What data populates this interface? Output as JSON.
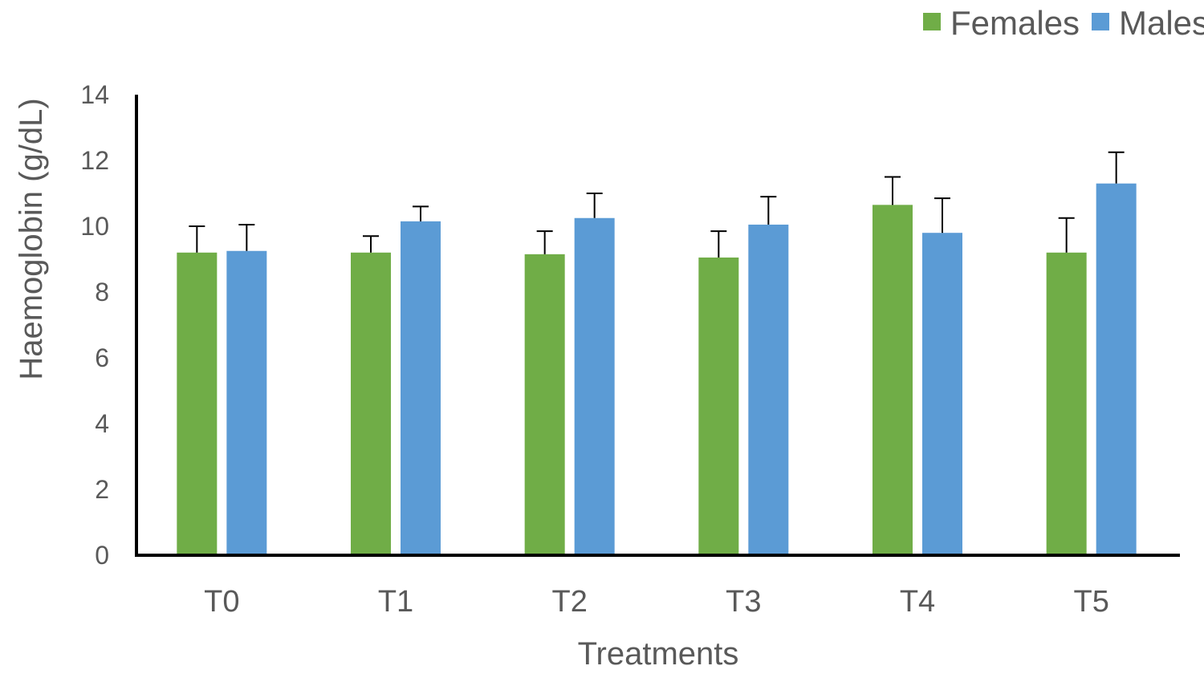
{
  "chart_data": {
    "type": "bar",
    "title": "",
    "xlabel": "Treatments",
    "ylabel": "Haemoglobin  (g/dL)",
    "ylim": [
      0,
      14
    ],
    "yticks": [
      0,
      2,
      4,
      6,
      8,
      10,
      12,
      14
    ],
    "categories": [
      "T0",
      "T1",
      "T2",
      "T3",
      "T4",
      "T5"
    ],
    "series": [
      {
        "name": "Females",
        "color": "#70AD47",
        "values": [
          9.2,
          9.2,
          9.15,
          9.05,
          10.65,
          9.2
        ],
        "errors": [
          0.8,
          0.5,
          0.7,
          0.8,
          0.85,
          1.05
        ]
      },
      {
        "name": "Males",
        "color": "#5B9BD5",
        "values": [
          9.25,
          10.15,
          10.25,
          10.05,
          9.8,
          11.3
        ],
        "errors": [
          0.8,
          0.45,
          0.75,
          0.85,
          1.05,
          0.95
        ]
      }
    ],
    "grid": false,
    "legend_position": "top-right"
  }
}
